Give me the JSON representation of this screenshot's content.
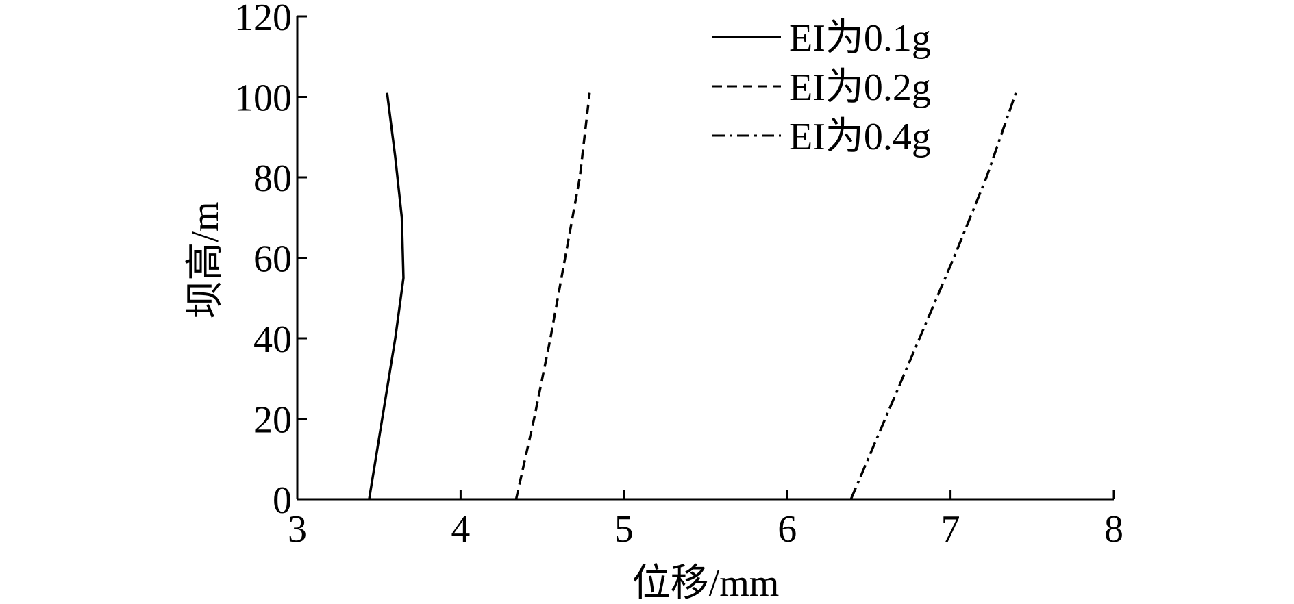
{
  "chart_data": {
    "type": "line",
    "xlabel": "位移/mm",
    "ylabel": "坝高/m",
    "xlim": [
      3,
      8
    ],
    "xticks": [
      3,
      4,
      5,
      6,
      7,
      8
    ],
    "ylim": [
      0,
      120
    ],
    "yticks": [
      0,
      20,
      40,
      60,
      80,
      100,
      120
    ],
    "legend": "upper right",
    "series": [
      {
        "name": "EI为0.1g",
        "color": "#000000",
        "dash": "solid",
        "x": [
          3.44,
          3.52,
          3.6,
          3.65,
          3.64,
          3.6,
          3.55
        ],
        "values": [
          0,
          20,
          40,
          55,
          70,
          85,
          101
        ]
      },
      {
        "name": "EI为0.2g",
        "color": "#000000",
        "dash": "dashed",
        "x": [
          4.34,
          4.45,
          4.55,
          4.64,
          4.73,
          4.79
        ],
        "values": [
          0,
          20,
          40,
          60,
          80,
          101
        ]
      },
      {
        "name": "EI为0.4g",
        "color": "#000000",
        "dash": "dashdot",
        "x": [
          6.39,
          6.6,
          6.81,
          7.02,
          7.22,
          7.4
        ],
        "values": [
          0,
          20,
          40,
          60,
          80,
          101
        ]
      }
    ]
  }
}
